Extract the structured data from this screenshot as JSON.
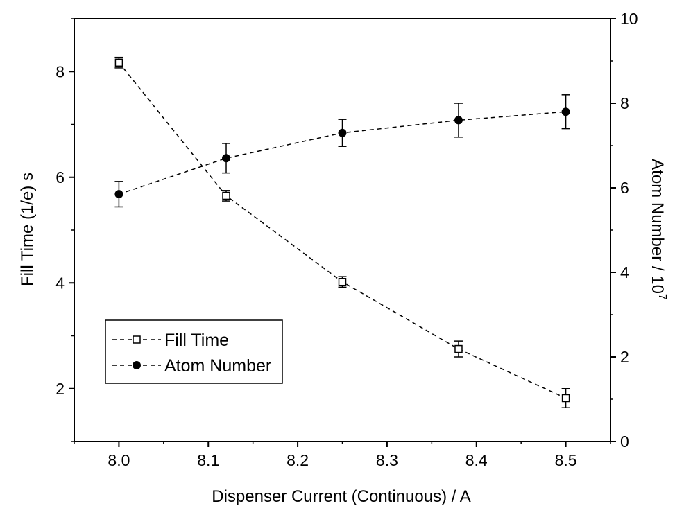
{
  "chart_data": {
    "type": "line",
    "xlabel": "Dispenser Current (Continuous)  / A",
    "ylabel_left": "Fill Time (1/e) s",
    "ylabel_right": "Atom Number / 10",
    "ylabel_right_superscript": "7",
    "xlim": [
      7.95,
      8.55
    ],
    "ylim_left": [
      1.0,
      9.0
    ],
    "ylim_right": [
      0,
      10
    ],
    "x_ticks": [
      8.0,
      8.1,
      8.2,
      8.3,
      8.4,
      8.5
    ],
    "x_tick_labels": [
      "8.0",
      "8.1",
      "8.2",
      "8.3",
      "8.4",
      "8.5"
    ],
    "y_left_ticks": [
      2,
      4,
      6,
      8
    ],
    "y_left_tick_labels": [
      "2",
      "4",
      "6",
      "8"
    ],
    "y_right_ticks": [
      0,
      2,
      4,
      6,
      8,
      10
    ],
    "y_right_tick_labels": [
      "0",
      "2",
      "4",
      "6",
      "8",
      "10"
    ],
    "grid": false,
    "legend_position": "lower-left",
    "series": [
      {
        "name": "Fill Time",
        "axis": "left",
        "marker": "open-square",
        "line_style": "dashed",
        "color": "#000000",
        "x": [
          8.0,
          8.12,
          8.25,
          8.38,
          8.5
        ],
        "y": [
          8.17,
          5.65,
          4.02,
          2.75,
          1.82
        ],
        "yerr": [
          0.1,
          0.1,
          0.1,
          0.15,
          0.18
        ]
      },
      {
        "name": "Atom Number",
        "axis": "right",
        "marker": "filled-circle",
        "line_style": "dashed",
        "color": "#000000",
        "x": [
          8.0,
          8.12,
          8.25,
          8.38,
          8.5
        ],
        "y": [
          5.85,
          6.7,
          7.3,
          7.6,
          7.8
        ],
        "yerr": [
          0.3,
          0.35,
          0.32,
          0.4,
          0.4
        ]
      }
    ]
  }
}
